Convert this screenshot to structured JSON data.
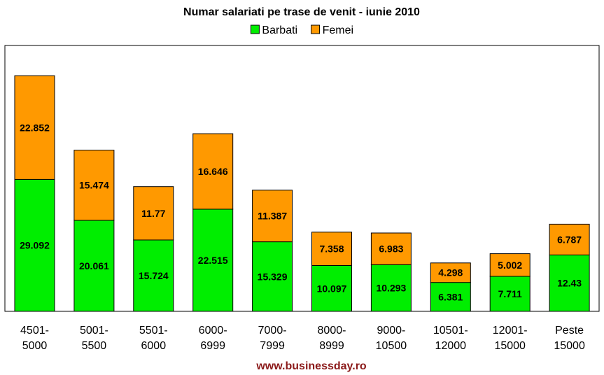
{
  "chart_data": {
    "type": "bar",
    "stacked": true,
    "title": "Numar salariati pe trase de venit - iunie 2010",
    "categories": [
      [
        "4501-",
        "5000"
      ],
      [
        "5001-",
        "5500"
      ],
      [
        "5501-",
        "6000"
      ],
      [
        "6000-",
        "6999"
      ],
      [
        "7000-",
        "7999"
      ],
      [
        "8000-",
        "8999"
      ],
      [
        "9000-",
        "10500"
      ],
      [
        "10501-",
        "12000"
      ],
      [
        "12001-",
        "15000"
      ],
      [
        "Peste",
        "15000"
      ]
    ],
    "series": [
      {
        "name": "Barbati",
        "color": "#00ee00",
        "values": [
          29.092,
          20.061,
          15.724,
          22.515,
          15.329,
          10.097,
          10.293,
          6.381,
          7.711,
          12.43
        ],
        "labels": [
          "29.092",
          "20.061",
          "15.724",
          "22.515",
          "15.329",
          "10.097",
          "10.293",
          "6.381",
          "7.711",
          "12.43"
        ]
      },
      {
        "name": "Femei",
        "color": "#ff9900",
        "values": [
          22.852,
          15.474,
          11.77,
          16.646,
          11.387,
          7.358,
          6.983,
          4.298,
          5.002,
          6.787
        ],
        "labels": [
          "22.852",
          "15.474",
          "11.77",
          "16.646",
          "11.387",
          "7.358",
          "6.983",
          "4.298",
          "5.002",
          "6.787"
        ]
      }
    ],
    "ylim": [
      0,
      58.6
    ],
    "grid": false,
    "legend_position": "top-center",
    "xlabel": "",
    "ylabel": ""
  },
  "footer": "www.businessday.ro"
}
